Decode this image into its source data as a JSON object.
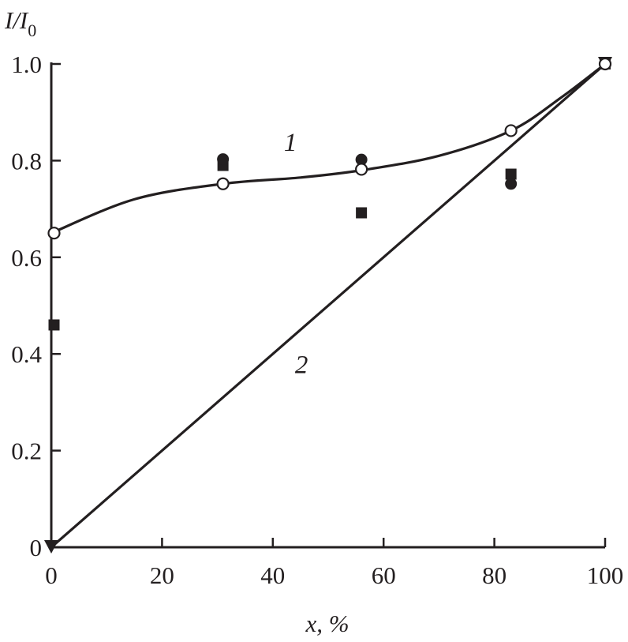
{
  "chart_data": {
    "type": "scatter",
    "title": "",
    "ylabel": "I/I",
    "ylabel_subscript": "0",
    "xlabel": "x, %",
    "xlim": [
      0,
      100
    ],
    "ylim": [
      0,
      1.0
    ],
    "grid": false,
    "x_tick_labels": [
      {
        "value": 0,
        "label": "0"
      },
      {
        "value": 20,
        "label": "20"
      },
      {
        "value": 40,
        "label": "40"
      },
      {
        "value": 60,
        "label": "60"
      },
      {
        "value": 80,
        "label": "80"
      },
      {
        "value": 100,
        "label": "100"
      }
    ],
    "y_tick_labels": [
      {
        "value": 0,
        "label": "0"
      },
      {
        "value": 0.2,
        "label": "0.2"
      },
      {
        "value": 0.4,
        "label": "0.4"
      },
      {
        "value": 0.6,
        "label": "0.6"
      },
      {
        "value": 0.8,
        "label": "0.8"
      },
      {
        "value": 1.0,
        "label": "1.0"
      }
    ],
    "curves": [
      {
        "label": "1",
        "kind": "smooth",
        "points": [
          {
            "x": 0,
            "y": 0.65
          },
          {
            "x": 15,
            "y": 0.72
          },
          {
            "x": 31,
            "y": 0.752
          },
          {
            "x": 45,
            "y": 0.765
          },
          {
            "x": 56,
            "y": 0.78
          },
          {
            "x": 70,
            "y": 0.81
          },
          {
            "x": 83,
            "y": 0.862
          },
          {
            "x": 92,
            "y": 0.93
          },
          {
            "x": 100,
            "y": 1.0
          }
        ],
        "label_position": {
          "x": 42,
          "y": 0.82
        }
      },
      {
        "label": "2",
        "kind": "straight",
        "points": [
          {
            "x": 0,
            "y": 0
          },
          {
            "x": 100,
            "y": 1.0
          }
        ],
        "label_position": {
          "x": 44,
          "y": 0.36
        }
      }
    ],
    "series": [
      {
        "marker": "open-circle",
        "points": [
          {
            "x": 0.5,
            "y": 0.65
          },
          {
            "x": 31,
            "y": 0.752
          },
          {
            "x": 56,
            "y": 0.782
          },
          {
            "x": 83,
            "y": 0.862
          },
          {
            "x": 100,
            "y": 1.0
          }
        ]
      },
      {
        "marker": "filled-circle",
        "points": [
          {
            "x": 31,
            "y": 0.803
          },
          {
            "x": 56,
            "y": 0.802
          },
          {
            "x": 83,
            "y": 0.752
          },
          {
            "x": 100,
            "y": 1.0
          }
        ]
      },
      {
        "marker": "filled-square",
        "points": [
          {
            "x": 0.5,
            "y": 0.46
          },
          {
            "x": 31,
            "y": 0.79
          },
          {
            "x": 56,
            "y": 0.692
          },
          {
            "x": 83,
            "y": 0.772
          },
          {
            "x": 100,
            "y": 1.0
          }
        ]
      },
      {
        "marker": "filled-triangle-down",
        "points": [
          {
            "x": 0,
            "y": 0
          },
          {
            "x": 100,
            "y": 1.0
          }
        ]
      }
    ]
  }
}
